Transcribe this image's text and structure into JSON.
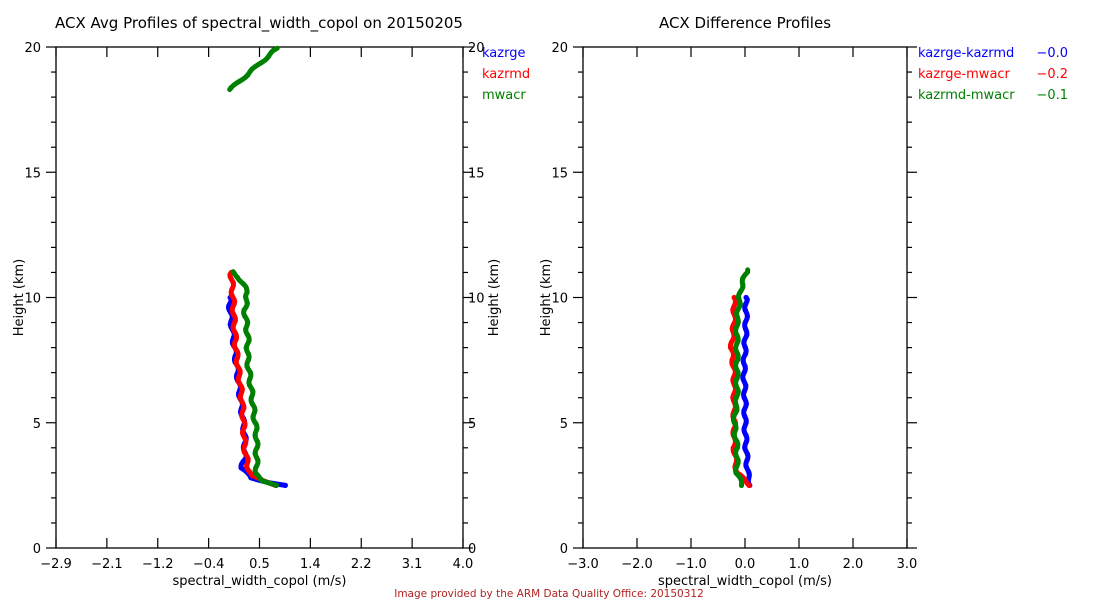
{
  "credit": {
    "text": "Image provided by the ARM Data Quality Office: 20150312",
    "color": "#b22222"
  },
  "chart_data": [
    {
      "type": "scatter",
      "title": "ACX Avg Profiles of spectral_width_copol on 20150205",
      "xlabel": "spectral_width_copol (m/s)",
      "ylabel": "Height (km)",
      "xlim": [
        -2.9,
        4.0
      ],
      "ylim": [
        0,
        20
      ],
      "x_ticks": [
        "-2.9",
        "-2.1",
        "-1.2",
        "-0.4",
        "0.5",
        "1.4",
        "2.2",
        "3.1",
        "4.0"
      ],
      "y_ticks": [
        "0",
        "5",
        "10",
        "15",
        "20"
      ],
      "legend": {
        "placement": "right",
        "entries": [
          {
            "label": "kazrge",
            "color": "#0000ff"
          },
          {
            "label": "kazrmd",
            "color": "#ff0000"
          },
          {
            "label": "mwacr",
            "color": "#008000"
          }
        ]
      },
      "series": [
        {
          "name": "kazrge",
          "color": "#0000ff",
          "height": [
            2.5,
            2.6,
            2.8,
            3.2,
            3.6,
            4.5,
            5.5,
            6.5,
            7.5,
            8.5,
            9.5,
            10.0
          ],
          "value": [
            1.0,
            0.75,
            0.4,
            0.25,
            0.3,
            0.3,
            0.25,
            0.2,
            0.15,
            0.1,
            0.05,
            0.05
          ]
        },
        {
          "name": "kazrmd",
          "color": "#ff0000",
          "height": [
            2.5,
            2.7,
            2.9,
            3.3,
            4.0,
            5.0,
            6.0,
            7.0,
            8.0,
            9.0,
            10.0,
            11.0
          ],
          "value": [
            0.85,
            0.6,
            0.4,
            0.35,
            0.3,
            0.28,
            0.25,
            0.2,
            0.15,
            0.12,
            0.1,
            0.07
          ]
        },
        {
          "name": "mwacr",
          "color": "#008000",
          "height": [
            2.5,
            2.7,
            3.0,
            3.5,
            4.5,
            5.5,
            6.5,
            7.5,
            8.5,
            9.5,
            10.2,
            10.8,
            11.1,
            18.3,
            19.95
          ],
          "value": [
            0.85,
            0.55,
            0.5,
            0.5,
            0.5,
            0.45,
            0.4,
            0.35,
            0.35,
            0.3,
            0.35,
            0.2,
            0.05,
            0.05,
            0.85
          ]
        }
      ]
    },
    {
      "type": "scatter",
      "title": "ACX Difference Profiles",
      "xlabel": "spectral_width_copol (m/s)",
      "ylabel": "Height (km)",
      "xlim": [
        -3.0,
        3.0
      ],
      "ylim": [
        0,
        20
      ],
      "x_ticks": [
        "-3.0",
        "-2.0",
        "-1.0",
        "0.0",
        "1.0",
        "2.0",
        "3.0"
      ],
      "y_ticks": [
        "0",
        "5",
        "10",
        "15",
        "20"
      ],
      "legend": {
        "placement": "right",
        "entries": [
          {
            "label": "kazrge-kazrmd",
            "value": "-0.0",
            "color": "#0000ff"
          },
          {
            "label": "kazrge-mwacr",
            "value": "-0.2",
            "color": "#ff0000"
          },
          {
            "label": "kazrmd-mwacr",
            "value": "-0.1",
            "color": "#008000"
          }
        ]
      },
      "series": [
        {
          "name": "kazrge-kazrmd",
          "color": "#0000ff",
          "height": [
            2.5,
            3.0,
            4.0,
            5.0,
            6.0,
            7.0,
            8.0,
            9.0,
            10.0
          ],
          "value": [
            0.1,
            0.05,
            0.02,
            0.0,
            0.0,
            -0.02,
            0.0,
            0.02,
            0.02
          ]
        },
        {
          "name": "kazrge-mwacr",
          "color": "#ff0000",
          "height": [
            2.5,
            3.0,
            4.0,
            5.0,
            6.0,
            7.0,
            8.0,
            9.0,
            10.0
          ],
          "value": [
            0.1,
            -0.15,
            -0.2,
            -0.2,
            -0.2,
            -0.2,
            -0.25,
            -0.2,
            -0.2
          ]
        },
        {
          "name": "kazrmd-mwacr",
          "color": "#008000",
          "height": [
            2.5,
            3.0,
            4.0,
            5.0,
            6.0,
            7.0,
            8.0,
            9.0,
            10.0,
            10.6,
            11.1
          ],
          "value": [
            -0.05,
            -0.15,
            -0.15,
            -0.2,
            -0.15,
            -0.15,
            -0.15,
            -0.15,
            -0.1,
            -0.05,
            0.05
          ]
        }
      ]
    }
  ]
}
